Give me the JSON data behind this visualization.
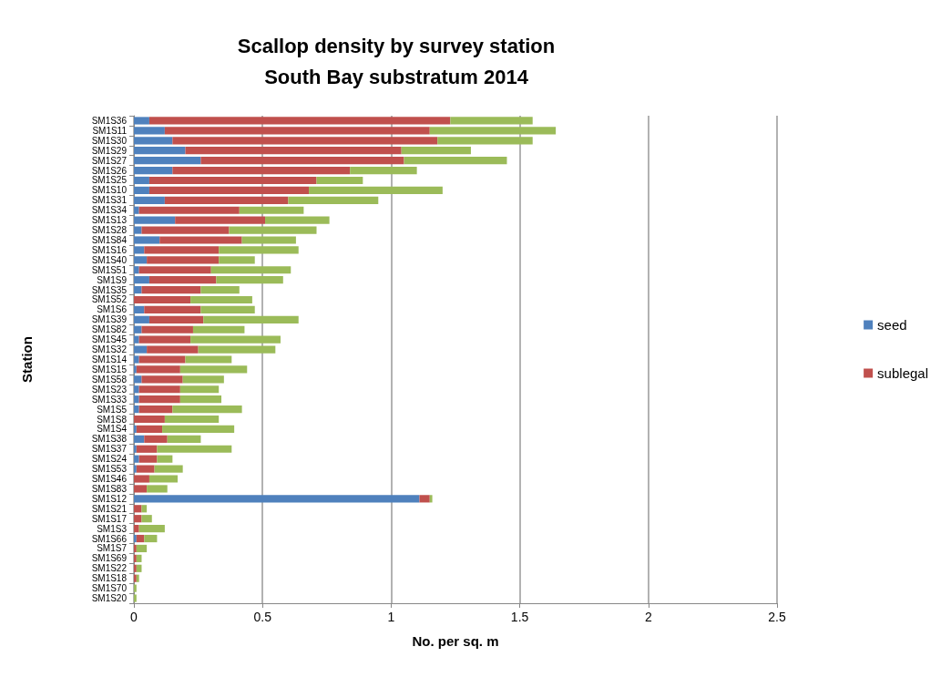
{
  "chart_data": {
    "type": "bar",
    "title": "Scallop density by survey station\nSouth Bay substratum 2014",
    "xlabel": "No. per sq. m",
    "ylabel": "Station",
    "orientation": "horizontal",
    "stacked": true,
    "categories": [
      "SM1S36",
      "SM1S11",
      "SM1S30",
      "SM1S29",
      "SM1S27",
      "SM1S26",
      "SM1S25",
      "SM1S10",
      "SM1S31",
      "SM1S34",
      "SM1S13",
      "SM1S28",
      "SM1S84",
      "SM1S16",
      "SM1S40",
      "SM1S51",
      "SM1S9",
      "SM1S35",
      "SM1S52",
      "SM1S6",
      "SM1S39",
      "SM1S82",
      "SM1S45",
      "SM1S32",
      "SM1S14",
      "SM1S15",
      "SM1S58",
      "SM1S23",
      "SM1S33",
      "SM1S5",
      "SM1S8",
      "SM1S4",
      "SM1S38",
      "SM1S37",
      "SM1S24",
      "SM1S53",
      "SM1S46",
      "SM1S83",
      "SM1S12",
      "SM1S21",
      "SM1S17",
      "SM1S3",
      "SM1S66",
      "SM1S7",
      "SM1S69",
      "SM1S22",
      "SM1S18",
      "SM1S70",
      "SM1S20"
    ],
    "series": [
      {
        "name": "seed",
        "color": "#4f81bd",
        "values": [
          0.06,
          0.12,
          0.15,
          0.2,
          0.26,
          0.15,
          0.06,
          0.06,
          0.12,
          0.02,
          0.16,
          0.03,
          0.1,
          0.04,
          0.05,
          0.02,
          0.06,
          0.03,
          0,
          0.04,
          0.06,
          0.03,
          0.02,
          0.05,
          0.02,
          0.01,
          0.03,
          0.02,
          0.02,
          0.02,
          0,
          0.01,
          0.04,
          0.01,
          0.02,
          0.01,
          0,
          0,
          1.11,
          0,
          0,
          0,
          0.01,
          0,
          0,
          0,
          0,
          0,
          0
        ]
      },
      {
        "name": "sublegal",
        "color": "#c0504d",
        "values": [
          1.17,
          1.03,
          1.03,
          0.84,
          0.79,
          0.69,
          0.65,
          0.62,
          0.48,
          0.39,
          0.35,
          0.34,
          0.32,
          0.29,
          0.28,
          0.28,
          0.26,
          0.23,
          0.22,
          0.22,
          0.21,
          0.2,
          0.2,
          0.2,
          0.18,
          0.17,
          0.16,
          0.16,
          0.16,
          0.13,
          0.12,
          0.1,
          0.09,
          0.08,
          0.07,
          0.07,
          0.06,
          0.05,
          0.04,
          0.03,
          0.03,
          0.02,
          0.03,
          0.01,
          0.01,
          0.01,
          0.01,
          0,
          0
        ]
      },
      {
        "color": "#9bbb59",
        "values": [
          0.32,
          0.49,
          0.37,
          0.27,
          0.4,
          0.26,
          0.18,
          0.52,
          0.35,
          0.25,
          0.25,
          0.34,
          0.21,
          0.31,
          0.14,
          0.31,
          0.26,
          0.15,
          0.24,
          0.21,
          0.37,
          0.2,
          0.35,
          0.3,
          0.18,
          0.26,
          0.16,
          0.15,
          0.16,
          0.27,
          0.21,
          0.28,
          0.13,
          0.29,
          0.06,
          0.11,
          0.11,
          0.08,
          0.01,
          0.02,
          0.04,
          0.1,
          0.05,
          0.04,
          0.02,
          0.02,
          0.01,
          0.01,
          0.01
        ]
      }
    ],
    "xlim": [
      0,
      2.5
    ],
    "xticks": [
      0,
      0.5,
      1,
      1.5,
      2,
      2.5
    ],
    "grid": "x",
    "legend": "right"
  }
}
